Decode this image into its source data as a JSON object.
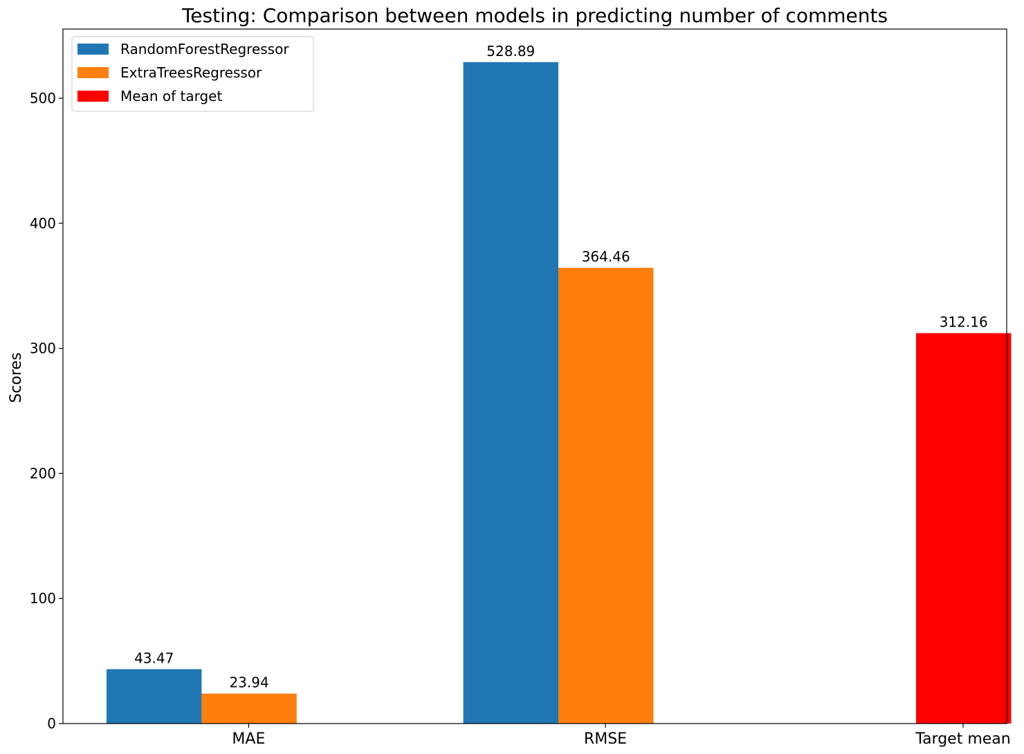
{
  "chart_data": {
    "type": "bar",
    "title": "Testing: Comparison between models in predicting number of comments",
    "xlabel": "",
    "ylabel": "Scores",
    "categories": [
      "MAE",
      "RMSE",
      "Target mean"
    ],
    "series": [
      {
        "name": "RandomForestRegressor",
        "color": "#1f77b4",
        "values": [
          43.47,
          528.89,
          null
        ]
      },
      {
        "name": "ExtraTreesRegressor",
        "color": "#ff7f0e",
        "values": [
          23.94,
          364.46,
          null
        ]
      },
      {
        "name": "Mean of target",
        "color": "#ff0000",
        "values": [
          null,
          null,
          312.16
        ]
      }
    ],
    "data_labels": [
      {
        "series": 0,
        "category": 0,
        "text": "43.47"
      },
      {
        "series": 1,
        "category": 0,
        "text": "23.94"
      },
      {
        "series": 0,
        "category": 1,
        "text": "528.89"
      },
      {
        "series": 1,
        "category": 1,
        "text": "364.46"
      },
      {
        "series": 2,
        "category": 2,
        "text": "312.16"
      }
    ],
    "yticks": [
      0,
      100,
      200,
      300,
      400,
      500
    ],
    "ylim": [
      0,
      555.33
    ],
    "grid": false,
    "legend_position": "top-left"
  }
}
